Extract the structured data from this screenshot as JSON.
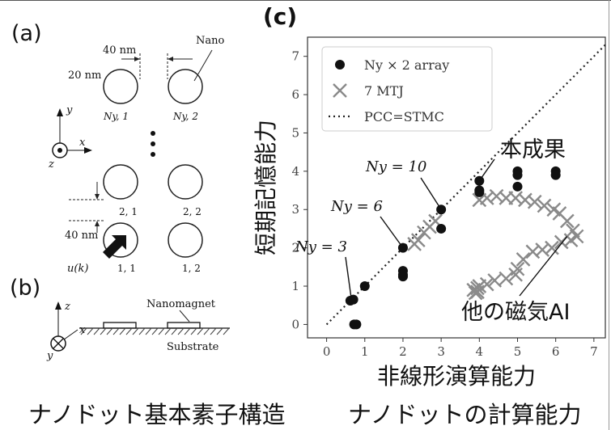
{
  "panel_a": {
    "label": "(a)",
    "dim_40nm_top": "40 nm",
    "dim_20nm": "20 nm",
    "nano_label": "Nano",
    "dim_40nm_left": "40 nm",
    "axis_y": "y",
    "axis_x": "x",
    "axis_z": "z",
    "grid": [
      {
        "label": "Ny, 1"
      },
      {
        "label": "Ny, 2"
      },
      {
        "label": "2, 1"
      },
      {
        "label": "2, 2"
      },
      {
        "label": "1, 1"
      },
      {
        "label": "1, 2"
      }
    ],
    "input_label": "u(k)"
  },
  "panel_b": {
    "label": "(b)",
    "nanomagnet": "Nanomagnet",
    "substrate": "Substrate",
    "axis_z": "z",
    "axis_x": "x",
    "axis_y": "y"
  },
  "panel_c": {
    "label": "(c)"
  },
  "chart_data": {
    "type": "scatter",
    "xlabel": "非線形演算能力",
    "ylabel": "短期記憶能力",
    "xlim": [
      -0.5,
      7.3
    ],
    "ylim": [
      -0.35,
      7.5
    ],
    "xticks": [
      "0",
      "1",
      "2",
      "3",
      "4",
      "5",
      "6",
      "7"
    ],
    "yticks": [
      "0",
      "1",
      "2",
      "3",
      "4",
      "5",
      "6",
      "7"
    ],
    "grid": false,
    "legend_position": "top-left",
    "legend": [
      {
        "marker": "dot",
        "text": "Ny × 2 array"
      },
      {
        "marker": "x",
        "text": "7 MTJ"
      },
      {
        "marker": "dotted",
        "text": "PCC=STMC"
      }
    ],
    "series": [
      {
        "name": "Ny × 2 array",
        "marker": "dot",
        "color": "#111111",
        "points": [
          [
            0.62,
            0.62
          ],
          [
            0.7,
            0.65
          ],
          [
            0.72,
            0.0
          ],
          [
            0.78,
            0.0
          ],
          [
            1.0,
            1.0
          ],
          [
            2.0,
            2.0
          ],
          [
            2.0,
            1.4
          ],
          [
            2.0,
            1.3
          ],
          [
            2.0,
            1.25
          ],
          [
            3.0,
            3.0
          ],
          [
            3.0,
            2.5
          ],
          [
            4.0,
            3.75
          ],
          [
            4.0,
            3.5
          ],
          [
            4.0,
            3.45
          ],
          [
            5.0,
            4.0
          ],
          [
            5.0,
            3.9
          ],
          [
            5.0,
            3.6
          ],
          [
            6.0,
            4.0
          ],
          [
            6.0,
            3.9
          ]
        ]
      },
      {
        "name": "7 MTJ",
        "marker": "x",
        "color": "#8a8a8a",
        "points": [
          [
            2.3,
            2.1
          ],
          [
            2.4,
            2.2
          ],
          [
            2.55,
            2.4
          ],
          [
            2.7,
            2.55
          ],
          [
            2.85,
            2.7
          ],
          [
            4.0,
            3.25
          ],
          [
            4.2,
            3.3
          ],
          [
            4.45,
            3.35
          ],
          [
            4.7,
            3.3
          ],
          [
            4.95,
            3.3
          ],
          [
            5.2,
            3.25
          ],
          [
            5.45,
            3.2
          ],
          [
            5.7,
            3.1
          ],
          [
            5.95,
            3.0
          ],
          [
            6.1,
            2.9
          ],
          [
            6.3,
            2.7
          ],
          [
            6.45,
            2.45
          ],
          [
            6.55,
            2.3
          ],
          [
            6.4,
            2.2
          ],
          [
            6.15,
            2.15
          ],
          [
            5.9,
            2.0
          ],
          [
            5.65,
            1.95
          ],
          [
            5.4,
            1.9
          ],
          [
            5.15,
            1.7
          ],
          [
            5.0,
            1.45
          ],
          [
            4.95,
            1.3
          ],
          [
            4.7,
            1.2
          ],
          [
            4.4,
            1.15
          ],
          [
            4.2,
            1.05
          ],
          [
            4.0,
            1.0
          ],
          [
            3.95,
            0.95
          ],
          [
            3.85,
            0.9
          ],
          [
            3.95,
            0.85
          ],
          [
            3.9,
            0.82
          ]
        ]
      },
      {
        "name": "PCC=STMC",
        "marker": "dotted",
        "color": "#222222",
        "line": [
          [
            0,
            0
          ],
          [
            7.3,
            7.3
          ]
        ]
      }
    ],
    "annotations": [
      {
        "text": "Ny = 3",
        "target": [
          0.65,
          0.65
        ]
      },
      {
        "text": "Ny = 6",
        "target": [
          2.0,
          2.0
        ]
      },
      {
        "text": "Ny = 10",
        "target": [
          3.0,
          3.0
        ]
      },
      {
        "text": "本成果",
        "target": [
          4.0,
          3.75
        ]
      },
      {
        "text": "他の磁気AI",
        "target": [
          6.3,
          2.3
        ]
      }
    ]
  },
  "captions": {
    "left": "ナノドット基本素子構造",
    "right": "ナノドットの計算能力"
  }
}
